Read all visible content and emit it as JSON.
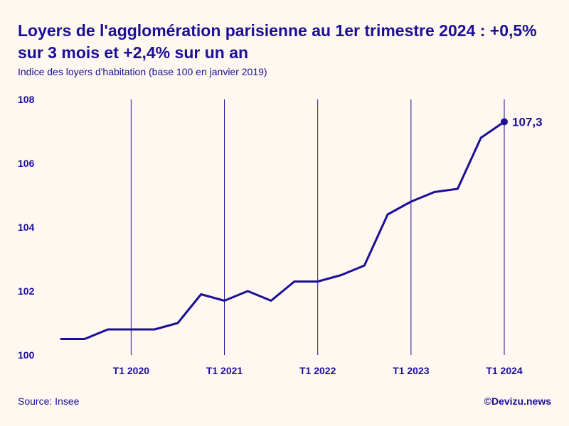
{
  "header": {
    "title": "Loyers de l'agglomération parisienne au 1er trimestre 2024 : +0,5% sur 3 mois et +2,4% sur un an",
    "subtitle": "Indice des loyers d'habitation (base 100 en janvier 2019)"
  },
  "footer": {
    "source": "Source: Insee",
    "credit": "©Devizu.news"
  },
  "chart_data": {
    "type": "line",
    "title": "Loyers de l'agglomération parisienne au 1er trimestre 2024 : +0,5% sur 3 mois et +2,4% sur un an",
    "subtitle": "Indice des loyers d'habitation (base 100 en janvier 2019)",
    "xlabel": "",
    "ylabel": "",
    "x": [
      "T2 2019",
      "T3 2019",
      "T4 2019",
      "T1 2020",
      "T2 2020",
      "T3 2020",
      "T4 2020",
      "T1 2021",
      "T2 2021",
      "T3 2021",
      "T4 2021",
      "T1 2022",
      "T2 2022",
      "T3 2022",
      "T4 2022",
      "T1 2023",
      "T2 2023",
      "T3 2023",
      "T4 2023",
      "T1 2024"
    ],
    "series": [
      {
        "values": [
          100.5,
          100.5,
          100.8,
          100.8,
          100.8,
          101.0,
          101.9,
          101.7,
          102.0,
          101.7,
          102.3,
          102.3,
          102.5,
          102.8,
          104.4,
          104.8,
          105.1,
          105.2,
          106.8,
          107.3
        ]
      }
    ],
    "ylim": [
      100,
      108
    ],
    "yticks": [
      100,
      102,
      104,
      106,
      108
    ],
    "ytick_labels": [
      "100",
      "102",
      "104",
      "106",
      "108"
    ],
    "xticks": [
      "T1 2020",
      "T1 2021",
      "T1 2022",
      "T1 2023",
      "T1 2024"
    ],
    "grid": "vertical-at-xticks",
    "legend": "none",
    "annotations": [
      {
        "x": "T1 2024",
        "label": "107,3"
      }
    ],
    "color": "#1a0f96"
  }
}
